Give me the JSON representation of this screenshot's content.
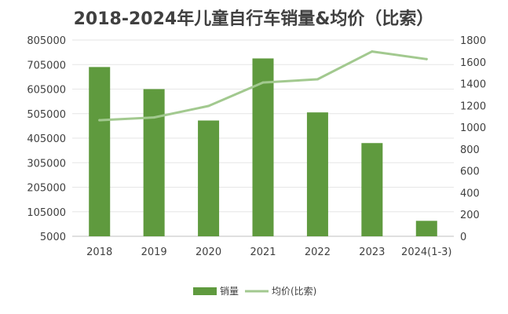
{
  "chart_data": {
    "type": "bar",
    "title": "2018-2024年儿童自行车销量&均价（比索）",
    "categories": [
      "2018",
      "2019",
      "2020",
      "2021",
      "2022",
      "2023",
      "2024(1-3)"
    ],
    "series": [
      {
        "name": "销量",
        "type": "bar",
        "axis": "left",
        "color": "#5f9a3e",
        "values": [
          695000,
          605000,
          477000,
          730000,
          510000,
          385000,
          68000
        ]
      },
      {
        "name": "均价(比索)",
        "type": "line",
        "axis": "right",
        "color": "#a2c98f",
        "values": [
          1065,
          1090,
          1195,
          1410,
          1440,
          1695,
          1625
        ]
      }
    ],
    "y_left": {
      "min": 5000,
      "max": 805000,
      "ticks": [
        5000,
        105000,
        205000,
        305000,
        405000,
        505000,
        605000,
        705000,
        805000
      ]
    },
    "y_right": {
      "min": 0,
      "max": 1800,
      "ticks": [
        0,
        200,
        400,
        600,
        800,
        1000,
        1200,
        1400,
        1600,
        1800
      ]
    },
    "grid": true,
    "legend_position": "bottom"
  }
}
